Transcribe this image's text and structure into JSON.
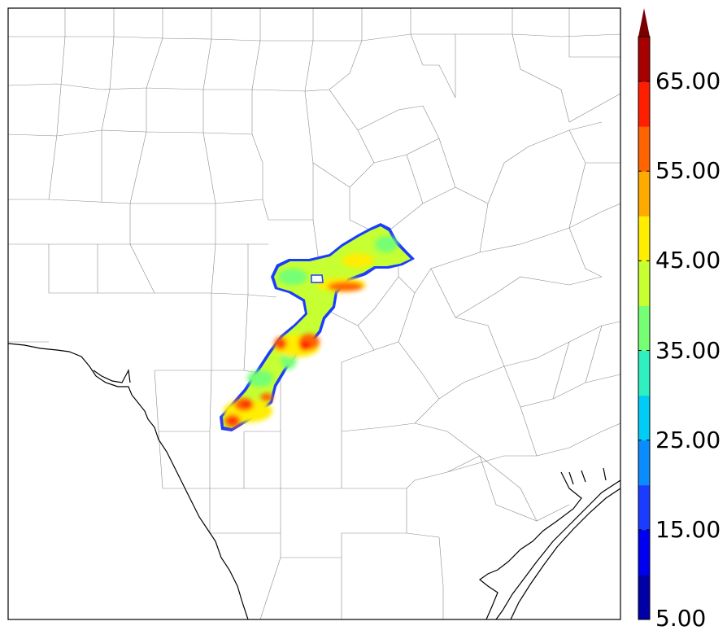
{
  "colorbar": {
    "ticks": [
      "5.00",
      "15.00",
      "25.00",
      "35.00",
      "45.00",
      "55.00",
      "65.00"
    ],
    "levels": [
      5,
      10,
      15,
      20,
      25,
      30,
      35,
      40,
      45,
      50,
      55,
      60,
      65,
      70
    ],
    "extend": "max",
    "colors": [
      "#0000a8",
      "#0000f0",
      "#1a3cff",
      "#0a8cff",
      "#00cdf5",
      "#2ff0c0",
      "#75ff75",
      "#c6ff32",
      "#ffee00",
      "#ffaa00",
      "#ff6400",
      "#ff1e00",
      "#a80000"
    ],
    "extend_color": "#7a0000"
  },
  "map": {
    "region": "Central and South Texas",
    "features": [
      "county-boundaries",
      "gulf-coastline",
      "rio-grande-border"
    ]
  }
}
